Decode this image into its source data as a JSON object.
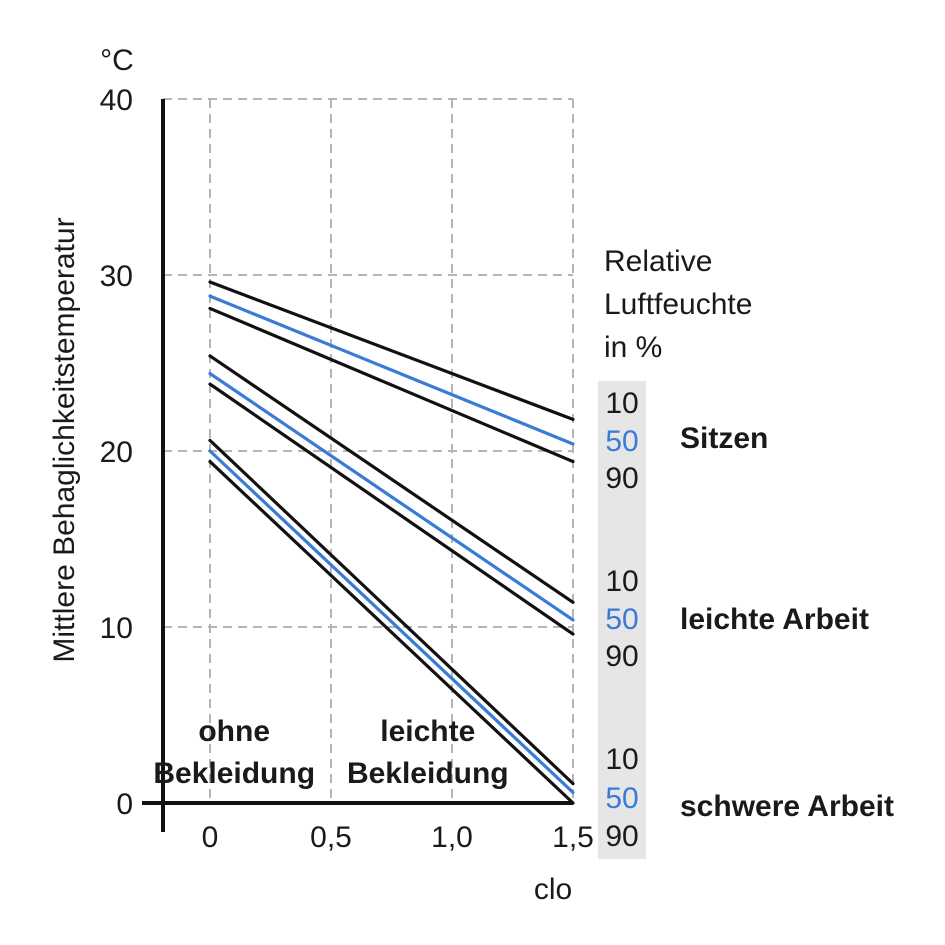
{
  "chart_data": {
    "type": "line",
    "y_unit": "°C",
    "ylabel": "Mittlere Behaglichkeitstemperatur",
    "xlabel": "clo",
    "xlim": [
      -0.18,
      1.5
    ],
    "ylim": [
      0,
      40
    ],
    "x_ticks": [
      "0",
      "0,5",
      "1,0",
      "1,5"
    ],
    "x_tick_values": [
      0,
      0.5,
      1.0,
      1.5
    ],
    "y_ticks": [
      "0",
      "10",
      "20",
      "30",
      "40"
    ],
    "y_tick_values": [
      0,
      10,
      20,
      30,
      40
    ],
    "grid": true,
    "humidity_title": [
      "Relative",
      "Luftfeuchte",
      "in %"
    ],
    "clothing_labels": [
      {
        "lines": [
          "ohne",
          "Bekleidung"
        ],
        "x": 0.1
      },
      {
        "lines": [
          "leichte",
          "Bekleidung"
        ],
        "x": 0.9
      }
    ],
    "groups": [
      {
        "activity": "Sitzen",
        "humidity_labels": [
          "10",
          "50",
          "90"
        ],
        "series": [
          {
            "humidity": "10",
            "color": "#111111",
            "x": [
              0,
              1.5
            ],
            "y": [
              29.6,
              21.8
            ]
          },
          {
            "humidity": "50",
            "color": "#3a7bd5",
            "x": [
              0,
              1.5
            ],
            "y": [
              28.8,
              20.4
            ]
          },
          {
            "humidity": "90",
            "color": "#111111",
            "x": [
              0,
              1.5
            ],
            "y": [
              28.1,
              19.4
            ]
          }
        ]
      },
      {
        "activity": "leichte Arbeit",
        "humidity_labels": [
          "10",
          "50",
          "90"
        ],
        "series": [
          {
            "humidity": "10",
            "color": "#111111",
            "x": [
              0,
              1.5
            ],
            "y": [
              25.4,
              11.4
            ]
          },
          {
            "humidity": "50",
            "color": "#3a7bd5",
            "x": [
              0,
              1.5
            ],
            "y": [
              24.4,
              10.4
            ]
          },
          {
            "humidity": "90",
            "color": "#111111",
            "x": [
              0,
              1.5
            ],
            "y": [
              23.8,
              9.6
            ]
          }
        ]
      },
      {
        "activity": "schwere Arbeit",
        "humidity_labels": [
          "10",
          "50",
          "90"
        ],
        "series": [
          {
            "humidity": "10",
            "color": "#111111",
            "x": [
              0,
              1.5
            ],
            "y": [
              20.6,
              1.1
            ]
          },
          {
            "humidity": "50",
            "color": "#3a7bd5",
            "x": [
              0,
              1.5
            ],
            "y": [
              20.0,
              0.6
            ]
          },
          {
            "humidity": "90",
            "color": "#111111",
            "x": [
              0,
              1.5
            ],
            "y": [
              19.4,
              0.0
            ]
          }
        ]
      }
    ]
  }
}
